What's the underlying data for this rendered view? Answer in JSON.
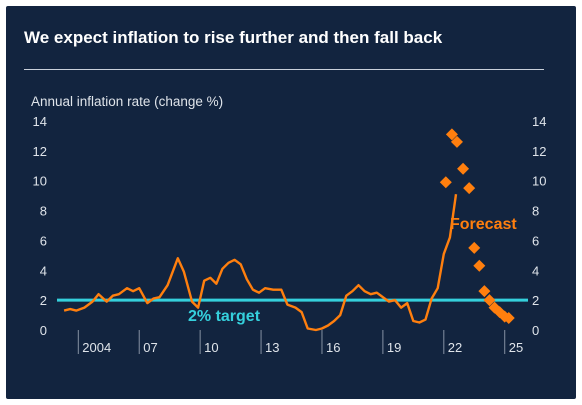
{
  "page": {
    "title": "We expect inflation to rise further and then fall back"
  },
  "colors": {
    "background": "#12243f",
    "actual": "#ff7f0e",
    "forecast": "#ff7f0e",
    "target": "#35d0dc",
    "text": "#dfe4ea"
  },
  "chart_data": {
    "type": "line",
    "title": "We expect inflation to rise further and then fall back",
    "ylabel": "Annual inflation rate (change %)",
    "xlabel": "",
    "ylim": [
      0,
      14
    ],
    "yticks": [
      0,
      2,
      4,
      6,
      8,
      10,
      12,
      14
    ],
    "xlim": [
      2003,
      2025.9
    ],
    "xticks": [
      {
        "value": 2004,
        "label": "2004"
      },
      {
        "value": 2007,
        "label": "07"
      },
      {
        "value": 2010,
        "label": "10"
      },
      {
        "value": 2013,
        "label": "13"
      },
      {
        "value": 2016,
        "label": "16"
      },
      {
        "value": 2019,
        "label": "19"
      },
      {
        "value": 2022,
        "label": "22"
      },
      {
        "value": 2025,
        "label": "25"
      }
    ],
    "grid": false,
    "target": {
      "value": 2,
      "label": "2% target"
    },
    "series": [
      {
        "type": "line",
        "x": [
          2003.2,
          2003.5,
          2003.8,
          2004.2,
          2004.6,
          2004.9,
          2005.3,
          2005.6,
          2005.9,
          2006.3,
          2006.6,
          2006.9,
          2007.3,
          2007.6,
          2007.9,
          2008.3,
          2008.8,
          2009.1,
          2009.5,
          2009.8,
          2010.1,
          2010.4,
          2010.7,
          2011.0,
          2011.3,
          2011.6,
          2011.9,
          2012.2,
          2012.5,
          2012.8,
          2013.1,
          2013.5,
          2013.9,
          2014.2,
          2014.6,
          2014.9,
          2015.2,
          2015.6,
          2015.9,
          2016.2,
          2016.5,
          2016.8,
          2017.1,
          2017.4,
          2017.7,
          2018.0,
          2018.3,
          2018.6,
          2018.9,
          2019.2,
          2019.5,
          2019.8,
          2020.1,
          2020.4,
          2020.7,
          2021.0,
          2021.3,
          2021.6,
          2021.9,
          2022.2,
          2022.5
        ],
        "y": [
          1.3,
          1.4,
          1.3,
          1.5,
          1.9,
          2.4,
          1.9,
          2.3,
          2.4,
          2.8,
          2.6,
          2.8,
          1.8,
          2.1,
          2.2,
          3.0,
          4.8,
          3.9,
          1.9,
          1.5,
          3.3,
          3.5,
          3.1,
          4.1,
          4.5,
          4.7,
          4.4,
          3.4,
          2.7,
          2.5,
          2.8,
          2.7,
          2.7,
          1.7,
          1.5,
          1.2,
          0.1,
          0.0,
          0.1,
          0.3,
          0.6,
          1.0,
          2.3,
          2.6,
          3.0,
          2.6,
          2.4,
          2.5,
          2.2,
          1.9,
          2.0,
          1.5,
          1.8,
          0.6,
          0.5,
          0.7,
          2.1,
          2.8,
          5.1,
          6.2,
          9.1
        ]
      },
      {
        "type": "scatter",
        "label": "Forecast",
        "x": [
          2022.0,
          2022.3,
          2022.55,
          2022.85,
          2023.15,
          2023.4,
          2023.65,
          2023.9,
          2024.15,
          2024.4,
          2024.65,
          2024.9,
          2025.1
        ],
        "y": [
          9.9,
          13.1,
          12.6,
          10.8,
          9.5,
          5.5,
          4.3,
          2.6,
          2.0,
          1.5,
          1.2,
          0.9,
          0.8
        ]
      }
    ]
  }
}
